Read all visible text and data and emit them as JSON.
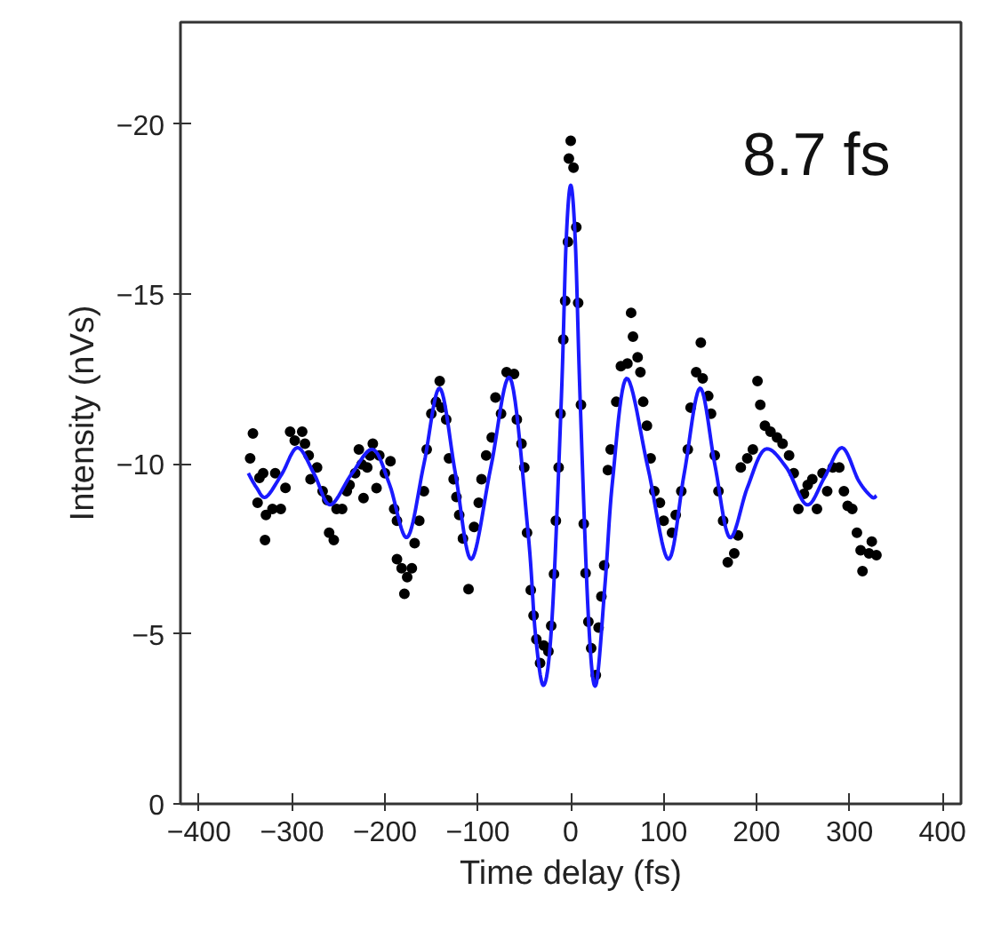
{
  "chart_data": {
    "type": "scatter",
    "xlabel": "Time delay (fs)",
    "ylabel": "Intensity (nVs)",
    "annotations": [
      "8.7 fs"
    ],
    "xlim": [
      -420,
      420
    ],
    "ylim": [
      0,
      -23
    ],
    "xticks": [
      -400,
      -300,
      -200,
      -100,
      0,
      100,
      200,
      300,
      400
    ],
    "yticks": [
      0,
      -5,
      -10,
      -15,
      -20
    ],
    "grid": false,
    "marker": "circle",
    "series": [
      {
        "color": "#000000",
        "x": [
          -342,
          -345,
          -335,
          -331,
          -337,
          -328,
          -329,
          -321,
          -312,
          -318,
          -307,
          -302,
          -297,
          -289,
          -286,
          -282,
          -280,
          -273,
          -267,
          -262,
          -260,
          -255,
          -252,
          -246,
          -241,
          -238,
          -232,
          -228,
          -225,
          -223,
          -219,
          -216,
          -213,
          -209,
          -206,
          -200,
          -194,
          -190,
          -187,
          -187,
          -182,
          -179,
          -176,
          -171,
          -168,
          -163,
          -158,
          -155,
          -150,
          -145,
          -141,
          -139,
          -134,
          -131,
          -126,
          -123,
          -120,
          -116,
          -110,
          -104,
          -99,
          -96,
          -91,
          -85,
          -81,
          -75,
          -69,
          -61,
          -58,
          -53,
          -50,
          -47,
          -43,
          -40,
          -37,
          -33,
          -29,
          -24,
          -21,
          -18,
          -16,
          -13,
          -11,
          -8,
          -6,
          -3,
          0,
          -2,
          3,
          6,
          8,
          11,
          14,
          16,
          19,
          22,
          27,
          30,
          33,
          36,
          40,
          43,
          49,
          54,
          61,
          65,
          67,
          72,
          75,
          78,
          82,
          86,
          90,
          96,
          100,
          109,
          113,
          119,
          126,
          129,
          135,
          140,
          142,
          148,
          151,
          155,
          159,
          164,
          169,
          176,
          180,
          183,
          190,
          196,
          201,
          204,
          209,
          215,
          222,
          228,
          235,
          240,
          245,
          251,
          255,
          260,
          265,
          271,
          276,
          282,
          289,
          294,
          298,
          303,
          308,
          312,
          314,
          321,
          324,
          329
        ],
        "values": [
          -10.9,
          -10.17,
          -9.59,
          -9.73,
          -8.86,
          -8.5,
          -7.76,
          -8.68,
          -8.68,
          -9.73,
          -9.3,
          -10.95,
          -10.69,
          -10.95,
          -10.6,
          -10.25,
          -9.55,
          -9.9,
          -9.2,
          -8.94,
          -7.98,
          -7.76,
          -8.68,
          -8.68,
          -9.2,
          -9.38,
          -9.73,
          -10.43,
          -9.99,
          -9.0,
          -9.9,
          -10.25,
          -10.6,
          -9.29,
          -10.25,
          -9.73,
          -10.08,
          -8.68,
          -8.33,
          -7.2,
          -6.93,
          -6.18,
          -6.67,
          -6.93,
          -7.67,
          -8.33,
          -9.2,
          -10.43,
          -11.48,
          -11.83,
          -12.44,
          -11.66,
          -11.31,
          -10.17,
          -9.55,
          -9.03,
          -8.5,
          -7.81,
          -6.32,
          -8.15,
          -8.86,
          -9.55,
          -10.25,
          -10.78,
          -11.96,
          -11.48,
          -12.7,
          -12.65,
          -11.31,
          -10.6,
          -9.9,
          -7.98,
          -6.29,
          -5.54,
          -4.84,
          -4.14,
          -4.66,
          -4.49,
          -5.24,
          -6.76,
          -8.33,
          -9.9,
          -11.48,
          -13.66,
          -14.8,
          -16.54,
          -19.51,
          -18.99,
          -18.72,
          -16.97,
          -14.74,
          -11.74,
          -8.24,
          -6.79,
          -5.36,
          -4.58,
          -3.79,
          -5.19,
          -6.1,
          -7.02,
          -9.82,
          -10.43,
          -11.83,
          -12.88,
          -12.96,
          -14.45,
          -13.75,
          -13.14,
          -12.7,
          -11.83,
          -11.13,
          -10.17,
          -9.2,
          -8.86,
          -8.33,
          -7.98,
          -8.5,
          -9.2,
          -10.43,
          -11.66,
          -12.7,
          -13.57,
          -12.52,
          -12.0,
          -11.48,
          -10.25,
          -9.2,
          -8.33,
          -7.11,
          -7.37,
          -7.9,
          -9.9,
          -10.17,
          -10.43,
          -12.44,
          -11.74,
          -11.13,
          -10.95,
          -10.78,
          -10.6,
          -10.25,
          -9.73,
          -8.68,
          -9.12,
          -9.38,
          -9.55,
          -8.68,
          -9.73,
          -9.2,
          -9.9,
          -9.9,
          -9.2,
          -8.77,
          -8.68,
          -7.98,
          -7.46,
          -6.85,
          -7.37,
          -7.72,
          -7.32
        ]
      },
      {
        "type": "line",
        "color": "#1a1aff",
        "marker": "none",
        "line_style": "solid",
        "x": [
          -347,
          -338,
          -328,
          -311,
          -294,
          -276,
          -259,
          -236,
          -213,
          -195,
          -176,
          -158,
          -141,
          -124,
          -107,
          -86,
          -65,
          -46,
          -38,
          -29,
          -20,
          -10,
          -5,
          0,
          5,
          10,
          19,
          27,
          37,
          45,
          60,
          83,
          105,
          122,
          139,
          155,
          171,
          190,
          209,
          232,
          254,
          273,
          292,
          310,
          324,
          329
        ],
        "values": [
          -9.73,
          -9.3,
          -9.03,
          -9.7,
          -10.48,
          -9.7,
          -8.8,
          -9.7,
          -10.43,
          -9.4,
          -7.84,
          -10.0,
          -12.23,
          -9.7,
          -7.2,
          -9.9,
          -12.52,
          -8.0,
          -5.0,
          -3.49,
          -5.5,
          -12.0,
          -16.5,
          -18.2,
          -16.5,
          -12.0,
          -5.5,
          -3.49,
          -6.5,
          -9.5,
          -12.52,
          -9.9,
          -7.2,
          -9.7,
          -12.23,
          -10.0,
          -7.84,
          -9.3,
          -10.43,
          -9.9,
          -8.8,
          -9.6,
          -10.48,
          -9.5,
          -9.03,
          -9.07
        ]
      }
    ]
  }
}
